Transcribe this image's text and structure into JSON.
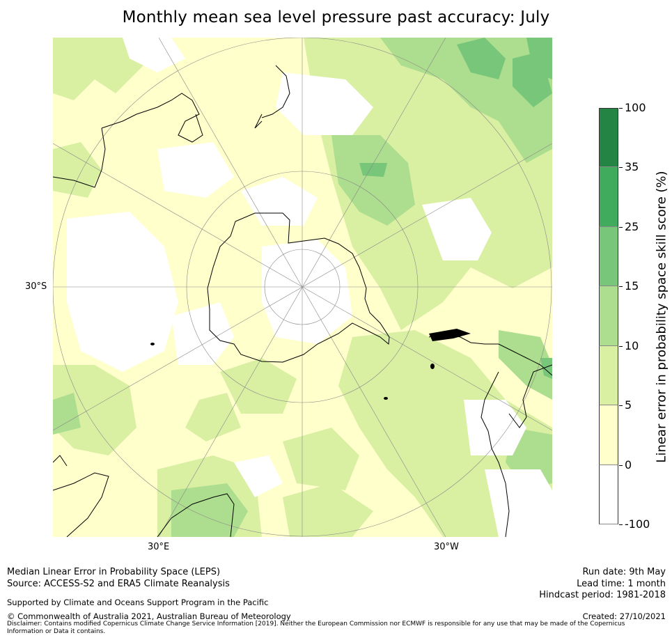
{
  "title": "Monthly mean sea level pressure past accuracy: July",
  "map": {
    "projection": "south-polar-stereographic",
    "lat_label": "30°S",
    "lon_labels": [
      "30°E",
      "30°W"
    ],
    "land_colors": {
      "outline": "#000000"
    },
    "regions": [
      {
        "name": "australia",
        "label": ""
      },
      {
        "name": "new-zealand",
        "label": ""
      },
      {
        "name": "antarctica",
        "label": ""
      },
      {
        "name": "south-america",
        "label": ""
      },
      {
        "name": "africa",
        "label": ""
      }
    ]
  },
  "colorbar": {
    "label": "Linear error in probability space skill score (%)",
    "ticks": [
      "100",
      "35",
      "25",
      "15",
      "10",
      "5",
      "0",
      "-100"
    ],
    "bins": [
      {
        "from": 35,
        "to": 100,
        "color": "#238443"
      },
      {
        "from": 25,
        "to": 35,
        "color": "#41ab5d"
      },
      {
        "from": 15,
        "to": 25,
        "color": "#78c679"
      },
      {
        "from": 10,
        "to": 15,
        "color": "#addd8e"
      },
      {
        "from": 5,
        "to": 10,
        "color": "#d9f0a3"
      },
      {
        "from": 0,
        "to": 5,
        "color": "#ffffcc"
      },
      {
        "from": -100,
        "to": 0,
        "color": "#ffffff"
      }
    ]
  },
  "footer": {
    "line1": "Median Linear Error in Probability Space (LEPS)",
    "line2": "Source: ACCESS-S2 and ERA5 Climate Reanalysis",
    "supported": "Supported by Climate and Oceans Support Program in the Pacific",
    "copyright": "© Commonwealth of Australia 2021, Australian Bureau of Meteorology",
    "disclaimer_1": "Disclaimer: Contains modified Copernicus Climate Change Service Information [2019]. Neither the European Commission nor ECMWF is responsible for any use that may be made of the Copernicus",
    "disclaimer_2": "Information or Data it contains.",
    "run_date": "Run date: 9th May",
    "lead_time": "Lead time: 1 month",
    "hindcast": "Hindcast period: 1981-2018",
    "created": "Created: 27/10/2021"
  }
}
